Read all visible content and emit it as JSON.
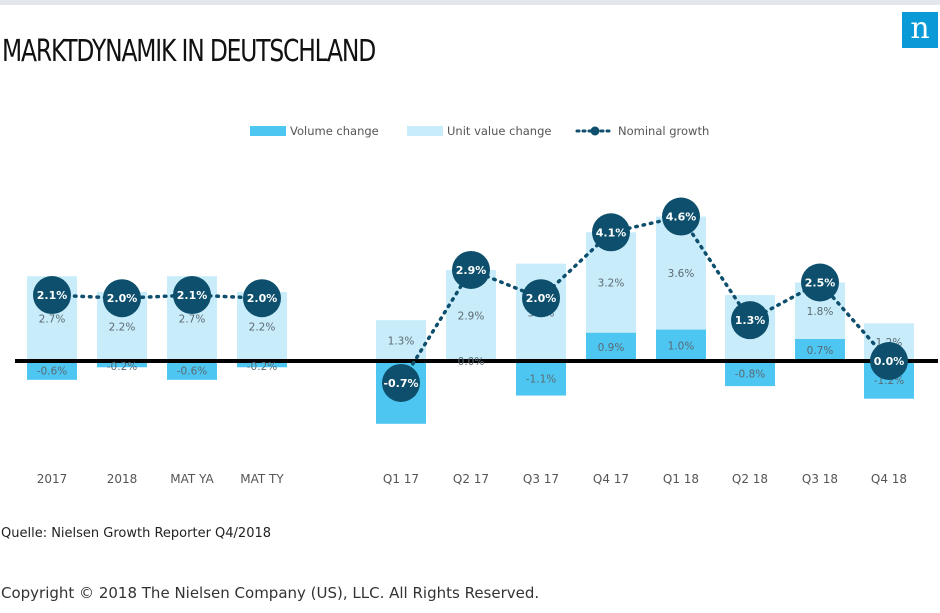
{
  "page": {
    "title": "MARKTDYNAMIK IN DEUTSCHLAND",
    "logo_letter": "n",
    "source": "Quelle: Nielsen Growth Reporter Q4/2018",
    "copyright": "Copyright © 2018 The Nielsen Company (US), LLC. All Rights Reserved."
  },
  "colors": {
    "volume": "#4dc6f2",
    "unit_value": "#c9ecfa",
    "nominal_line": "#0d4f6c",
    "bubble": "#0d4f6c",
    "zero_line": "#000000",
    "logo": "#0a9ad7"
  },
  "chart_data": {
    "type": "bar",
    "stacked": true,
    "categories": [
      "2017",
      "2018",
      "MAT YA",
      "MAT TY",
      "Q1 17",
      "Q2 17",
      "Q3 17",
      "Q4 17",
      "Q1 18",
      "Q2 18",
      "Q3 18",
      "Q4 18"
    ],
    "series": [
      {
        "name": "Volume change",
        "kind": "bar",
        "values": [
          -0.6,
          -0.2,
          -0.6,
          -0.2,
          -2.0,
          0.0,
          -1.1,
          0.9,
          1.0,
          -0.8,
          0.7,
          -1.2
        ]
      },
      {
        "name": "Unit value change",
        "kind": "bar",
        "values": [
          2.7,
          2.2,
          2.7,
          2.2,
          1.3,
          2.9,
          3.1,
          3.2,
          3.6,
          2.1,
          1.8,
          1.2
        ]
      },
      {
        "name": "Nominal growth",
        "kind": "line",
        "values": [
          2.1,
          2.0,
          2.1,
          2.0,
          -0.7,
          2.9,
          2.0,
          4.1,
          4.6,
          1.3,
          2.5,
          0.0
        ]
      }
    ],
    "value_labels": {
      "Volume change": [
        "-0.6%",
        "-0.2%",
        "-0.6%",
        "-0.2%",
        "-2.0%",
        "0.0%",
        "-1.1%",
        "0.9%",
        "1.0%",
        "-0.8%",
        "0.7%",
        "-1.2%"
      ],
      "Unit value change": [
        "2.7%",
        "2.2%",
        "2.7%",
        "2.2%",
        "1.3%",
        "2.9%",
        "3.1%",
        "3.2%",
        "3.6%",
        "2.1%",
        "1.8%",
        "1.2%"
      ],
      "Nominal growth": [
        "2.1%",
        "2.0%",
        "2.1%",
        "2.0%",
        "-0.7%",
        "2.9%",
        "2.0%",
        "4.1%",
        "4.6%",
        "1.3%",
        "2.5%",
        "0.0%"
      ]
    },
    "legend_position": "top-center",
    "grid": false,
    "ylim": [
      -2.2,
      5.0
    ]
  }
}
